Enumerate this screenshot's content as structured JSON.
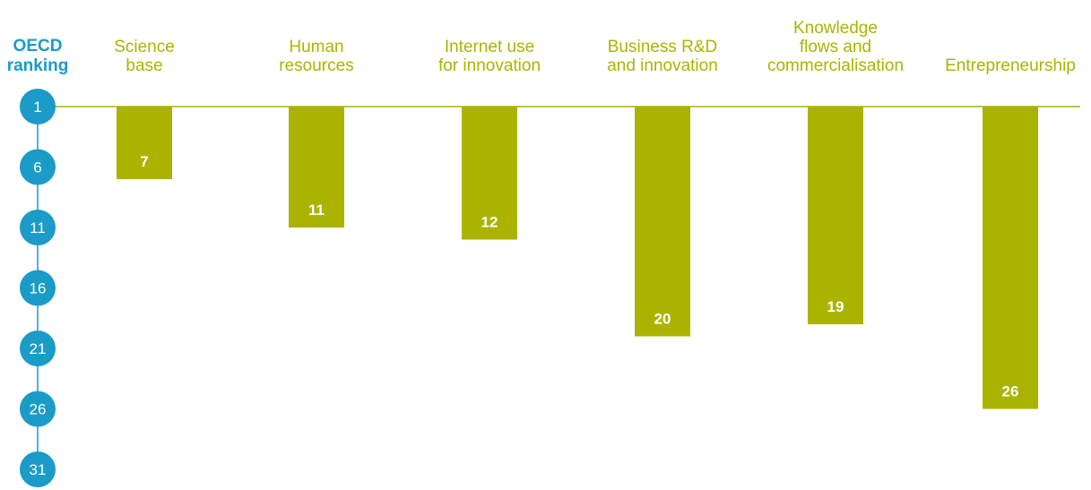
{
  "colors": {
    "axis": "#1a9bc8",
    "bar": "#aab400",
    "tick_text": "#ffffff",
    "value_text": "#ffffff"
  },
  "chart_data": {
    "type": "bar",
    "orientation": "vertical-hanging",
    "axis_title": [
      "OECD",
      "ranking"
    ],
    "categories": [
      [
        "Science",
        "base"
      ],
      [
        "Human",
        "resources"
      ],
      [
        "Internet use",
        "for innovation"
      ],
      [
        "Business R&D",
        "and innovation"
      ],
      [
        "Knowledge",
        "flows and",
        "commercialisation"
      ],
      [
        "Entrepreneurship"
      ]
    ],
    "values": [
      7,
      11,
      12,
      20,
      19,
      26
    ],
    "y_ticks": [
      1,
      6,
      11,
      16,
      21,
      26,
      31
    ],
    "ylim": [
      1,
      31
    ],
    "y_inverted": true,
    "grid": false,
    "legend": "none"
  }
}
